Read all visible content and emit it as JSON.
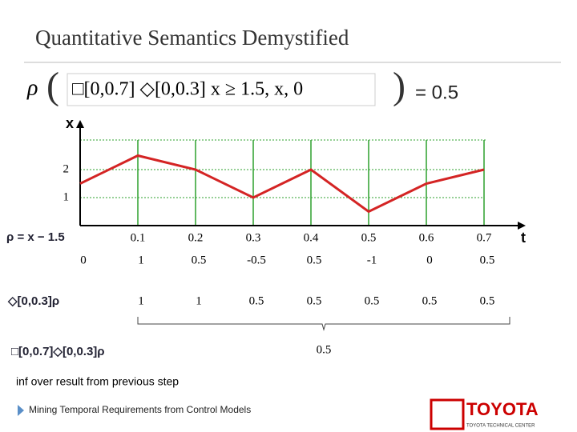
{
  "title": "Quantitative Semantics Demystified",
  "formula": {
    "rho": "ρ",
    "text": "□[0,0.7] ◇[0,0.3] x ≥ 1.5, x, 0",
    "result": "= 0.5"
  },
  "chart_data": {
    "type": "line",
    "y_label": "x",
    "x_label": "t",
    "x": [
      0,
      0.1,
      0.2,
      0.3,
      0.4,
      0.5,
      0.6,
      0.7
    ],
    "values": [
      1.5,
      2.5,
      2,
      1,
      2,
      0.5,
      1.5,
      2
    ],
    "color": "#d42424",
    "grid_color": "#2ca02c",
    "xlim": [
      0,
      0.75
    ],
    "xticks": [
      0.1,
      0.2,
      0.3,
      0.4,
      0.5,
      0.6,
      0.7
    ],
    "ylim": [
      0,
      3
    ],
    "yticks": [
      1,
      2
    ],
    "grid": true
  },
  "rows": [
    {
      "label": "ρ = x − 1.5",
      "values": [
        0,
        1,
        0.5,
        -0.5,
        0.5,
        -1,
        0,
        0.5
      ]
    },
    {
      "label": "◇[0,0.3]ρ",
      "values": [
        1,
        1,
        0.5,
        0.5,
        0.5,
        0.5,
        0.5
      ]
    },
    {
      "label": "□[0,0.7]◇[0,0.3]ρ",
      "values": [
        0.5
      ]
    }
  ],
  "note": "inf over result from previous step",
  "footer": "Mining Temporal Requirements from Control Models",
  "logo": "TOYOTA",
  "logo_sub": "TOYOTA TECHNICAL CENTER"
}
